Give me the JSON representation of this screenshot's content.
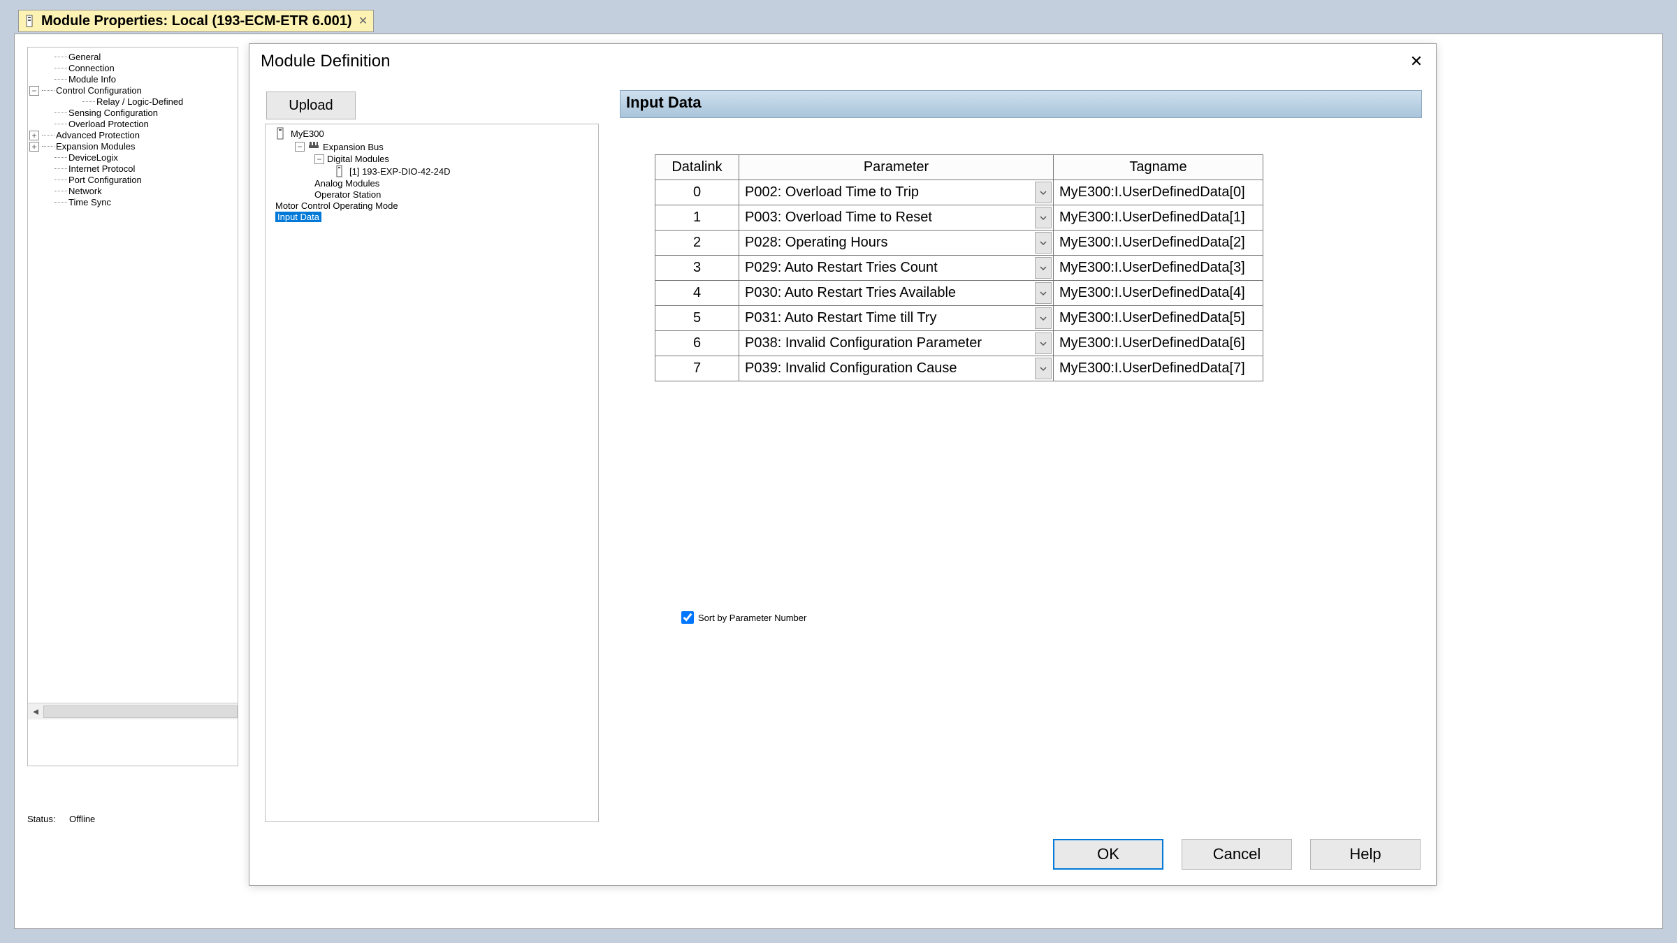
{
  "tab": {
    "title": "Module Properties: Local (193-ECM-ETR 6.001)"
  },
  "left_tree": {
    "items": [
      {
        "label": "General",
        "indent": 1,
        "exp": null
      },
      {
        "label": "Connection",
        "indent": 1,
        "exp": null
      },
      {
        "label": "Module Info",
        "indent": 1,
        "exp": null
      },
      {
        "label": "Control Configuration",
        "indent": 0,
        "exp": "-"
      },
      {
        "label": "Relay / Logic-Defined",
        "indent": 2,
        "exp": null
      },
      {
        "label": "Sensing Configuration",
        "indent": 1,
        "exp": null
      },
      {
        "label": "Overload Protection",
        "indent": 1,
        "exp": null
      },
      {
        "label": "Advanced Protection",
        "indent": 0,
        "exp": "+"
      },
      {
        "label": "Expansion Modules",
        "indent": 0,
        "exp": "+"
      },
      {
        "label": "DeviceLogix",
        "indent": 1,
        "exp": null
      },
      {
        "label": "Internet Protocol",
        "indent": 1,
        "exp": null
      },
      {
        "label": "Port Configuration",
        "indent": 1,
        "exp": null
      },
      {
        "label": "Network",
        "indent": 1,
        "exp": null
      },
      {
        "label": "Time Sync",
        "indent": 1,
        "exp": null
      }
    ]
  },
  "status": {
    "label": "Status:",
    "value": "Offline"
  },
  "dialog": {
    "title": "Module Definition",
    "upload_label": "Upload",
    "section_header": "Input Data",
    "tree": [
      {
        "label": "MyE300",
        "indent": 0,
        "icon": "device",
        "exp": null
      },
      {
        "label": "Expansion Bus",
        "indent": 1,
        "icon": "bus",
        "exp": "-"
      },
      {
        "label": "Digital Modules",
        "indent": 2,
        "icon": null,
        "exp": "-"
      },
      {
        "label": "[1] 193-EXP-DIO-42-24D",
        "indent": 3,
        "icon": "module",
        "exp": null
      },
      {
        "label": "Analog Modules",
        "indent": 2,
        "icon": null,
        "exp": null
      },
      {
        "label": "Operator Station",
        "indent": 2,
        "icon": null,
        "exp": null
      },
      {
        "label": "Motor Control Operating Mode",
        "indent": 0,
        "icon": null,
        "exp": null
      },
      {
        "label": "Input Data",
        "indent": 0,
        "icon": null,
        "exp": null,
        "selected": true
      }
    ],
    "table": {
      "columns": [
        "Datalink",
        "Parameter",
        "Tagname"
      ],
      "rows": [
        {
          "dl": "0",
          "param": "P002:  Overload Time to Trip",
          "tag": "MyE300:I.UserDefinedData[0]"
        },
        {
          "dl": "1",
          "param": "P003:  Overload Time to Reset",
          "tag": "MyE300:I.UserDefinedData[1]"
        },
        {
          "dl": "2",
          "param": "P028:  Operating Hours",
          "tag": "MyE300:I.UserDefinedData[2]"
        },
        {
          "dl": "3",
          "param": "P029:  Auto Restart Tries Count",
          "tag": "MyE300:I.UserDefinedData[3]"
        },
        {
          "dl": "4",
          "param": "P030:  Auto Restart Tries Available",
          "tag": "MyE300:I.UserDefinedData[4]"
        },
        {
          "dl": "5",
          "param": "P031:  Auto Restart Time till Try",
          "tag": "MyE300:I.UserDefinedData[5]"
        },
        {
          "dl": "6",
          "param": "P038:  Invalid Configuration Parameter",
          "tag": "MyE300:I.UserDefinedData[6]"
        },
        {
          "dl": "7",
          "param": "P039:  Invalid Configuration Cause",
          "tag": "MyE300:I.UserDefinedData[7]"
        }
      ]
    },
    "sort_label": "Sort by Parameter Number",
    "sort_checked": true,
    "buttons": {
      "ok": "OK",
      "cancel": "Cancel",
      "help": "Help"
    }
  },
  "colors": {
    "tab_bg": "#fcf2b3",
    "section_grad_top": "#cfe0ef",
    "section_grad_bot": "#a9c4da",
    "selection": "#0078d7",
    "app_bg": "#c3cfdc"
  }
}
